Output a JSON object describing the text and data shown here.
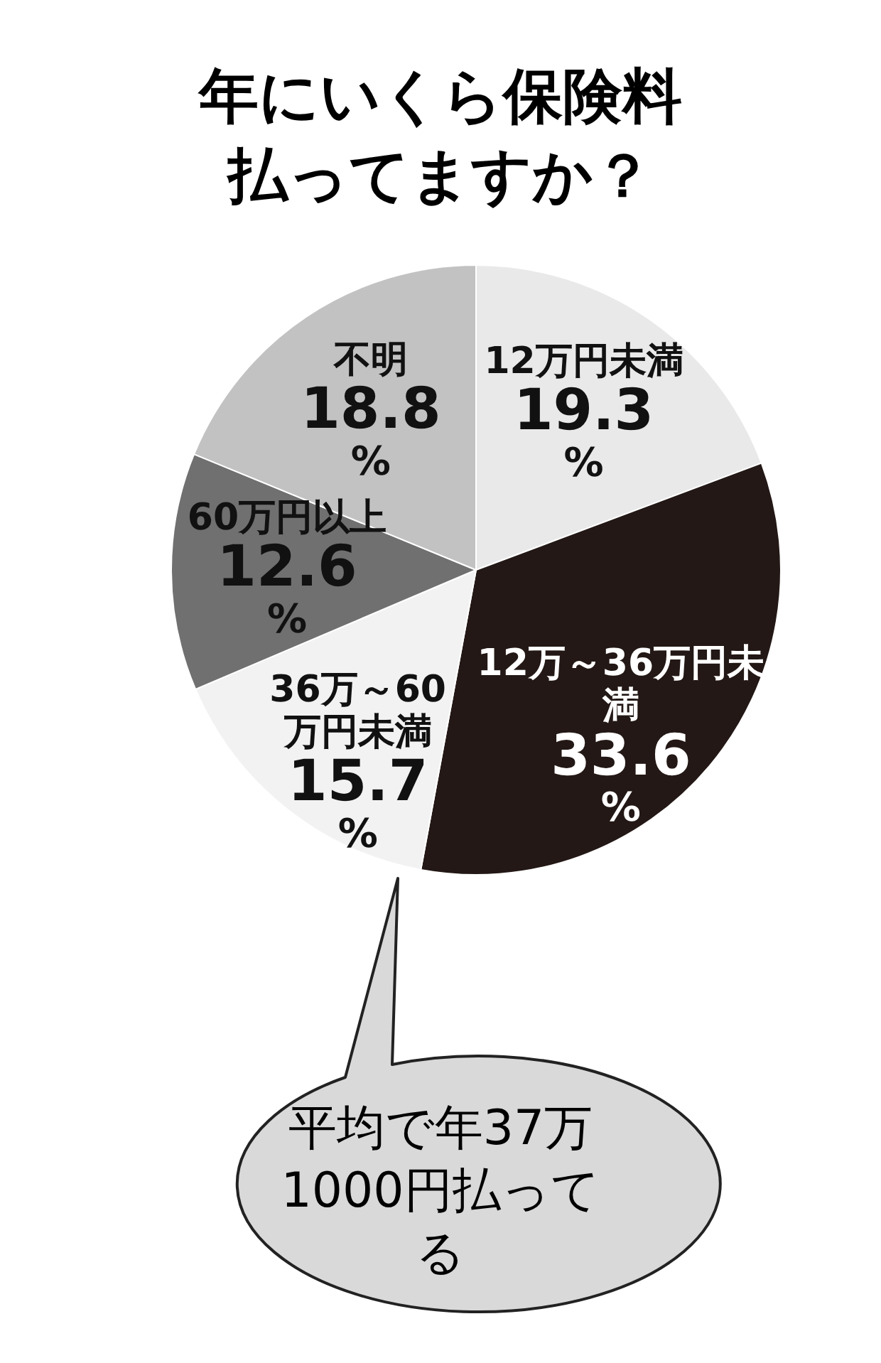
{
  "chart_data": {
    "type": "pie",
    "title": "年にいくら保険料払ってますか？",
    "categories": [
      "12万円未満",
      "12万～36万円未満",
      "36万～60万円未満",
      "60万円以上",
      "不明"
    ],
    "values": [
      19.3,
      33.6,
      15.7,
      12.6,
      18.8
    ],
    "colors": [
      "#e9e9e9",
      "#231815",
      "#f2f2f2",
      "#707070",
      "#c2c2c2"
    ],
    "value_labels": [
      "19.3%",
      "33.6%",
      "15.7%",
      "12.6%",
      "18.8%"
    ],
    "annotations": [
      "平均で年37万1000円払ってる"
    ]
  }
}
